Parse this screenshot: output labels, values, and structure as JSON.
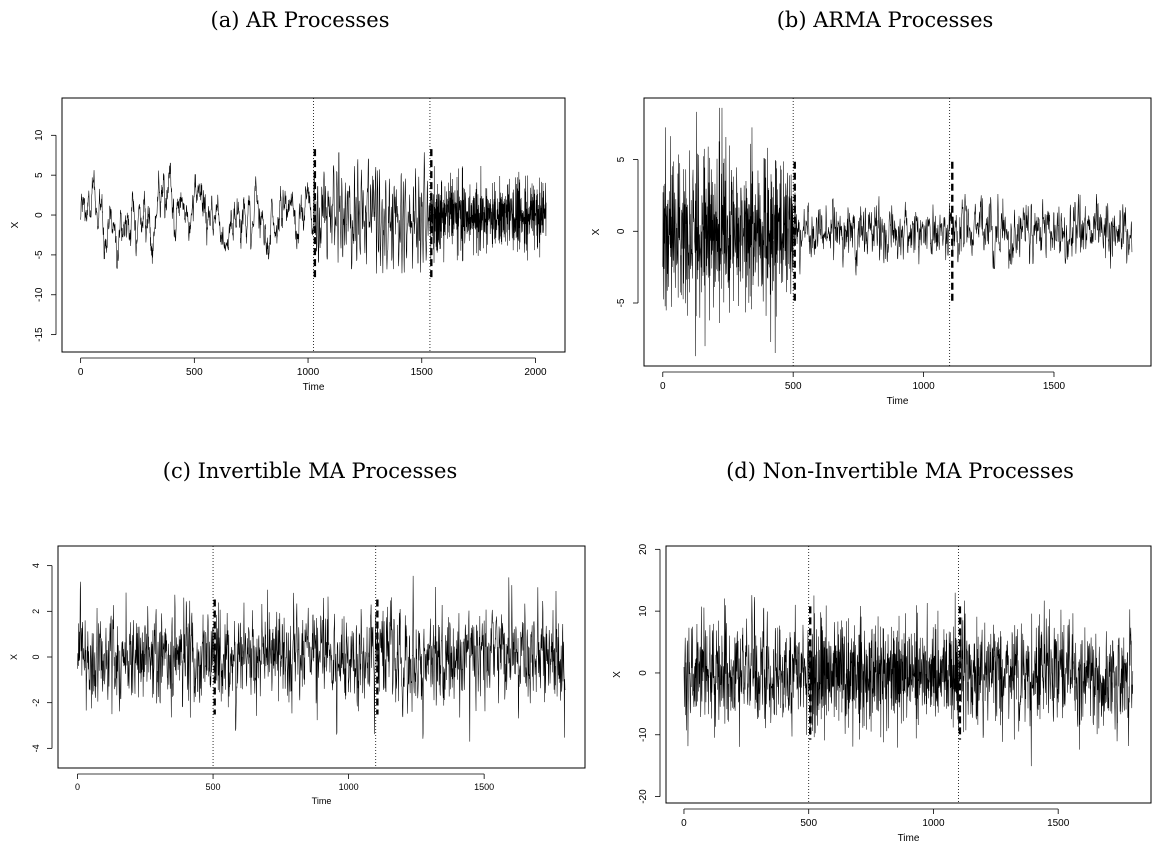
{
  "chart_data": [
    {
      "type": "line",
      "title": "(a) AR Processes",
      "xlabel": "Time",
      "ylabel": "X",
      "xlim": [
        0,
        2048
      ],
      "ylim": [
        -16,
        13.5
      ],
      "x_ticks": [
        0,
        500,
        1000,
        1500,
        2000
      ],
      "y_ticks": [
        -15,
        -10,
        -5,
        0,
        5,
        10
      ],
      "grid": false,
      "legend": "none",
      "n": 2048,
      "changepoints": [
        1024,
        1536
      ],
      "segments": [
        {
          "start": 0,
          "end": 1024,
          "sd": 2.5,
          "level_min": -6.7,
          "level_max": 6.5
        },
        {
          "start": 1024,
          "end": 1536,
          "sd": 5.5,
          "level_min": -16,
          "level_max": 13.2
        },
        {
          "start": 1536,
          "end": 2048,
          "sd": 2.3,
          "level_min": -6,
          "level_max": 7.4
        }
      ]
    },
    {
      "type": "line",
      "title": "(b) ARMA Processes",
      "xlabel": "Time",
      "ylabel": "X",
      "xlim": [
        0,
        1800
      ],
      "ylim": [
        -8.7,
        8.6
      ],
      "x_ticks": [
        0,
        500,
        1000,
        1500
      ],
      "y_ticks": [
        -5,
        0,
        5
      ],
      "grid": false,
      "legend": "none",
      "n": 1800,
      "changepoints": [
        500,
        1100
      ],
      "segments": [
        {
          "start": 0,
          "end": 500,
          "sd": 3.8,
          "level_min": -8.7,
          "level_max": 8.6
        },
        {
          "start": 500,
          "end": 1100,
          "sd": 0.9,
          "level_min": -3.5,
          "level_max": 2.7
        },
        {
          "start": 1100,
          "end": 1800,
          "sd": 0.9,
          "level_min": -2.6,
          "level_max": 2.6
        }
      ]
    },
    {
      "type": "line",
      "title": "(c) Invertible MA Processes",
      "xlabel": "Time",
      "ylabel": "X",
      "xlim": [
        0,
        1800
      ],
      "ylim": [
        -4.5,
        4.5
      ],
      "x_ticks": [
        0,
        500,
        1000,
        1500
      ],
      "y_ticks": [
        -4,
        -2,
        0,
        2,
        4
      ],
      "grid": false,
      "legend": "none",
      "n": 1800,
      "changepoints": [
        500,
        1100
      ],
      "segments": [
        {
          "start": 0,
          "end": 500,
          "sd": 1.0,
          "level_min": -3.2,
          "level_max": 3.3
        },
        {
          "start": 500,
          "end": 1100,
          "sd": 1.1,
          "level_min": -4.4,
          "level_max": 3.4
        },
        {
          "start": 1100,
          "end": 1800,
          "sd": 1.1,
          "level_min": -4.5,
          "level_max": 4.5
        }
      ]
    },
    {
      "type": "line",
      "title": "(d) Non-Invertible MA Processes",
      "xlabel": "Time",
      "ylabel": "X",
      "xlim": [
        0,
        1800
      ],
      "ylim": [
        -19.5,
        19
      ],
      "x_ticks": [
        0,
        500,
        1000,
        1500
      ],
      "y_ticks": [
        -20,
        -10,
        0,
        10,
        20
      ],
      "grid": false,
      "legend": "none",
      "n": 1800,
      "changepoints": [
        500,
        1100
      ],
      "segments": [
        {
          "start": 0,
          "end": 500,
          "sd": 4.8,
          "level_min": -13,
          "level_max": 14.8
        },
        {
          "start": 500,
          "end": 1100,
          "sd": 5.3,
          "level_min": -19.5,
          "level_max": 17
        },
        {
          "start": 1100,
          "end": 1800,
          "sd": 5.0,
          "level_min": -18,
          "level_max": 19
        }
      ]
    }
  ]
}
